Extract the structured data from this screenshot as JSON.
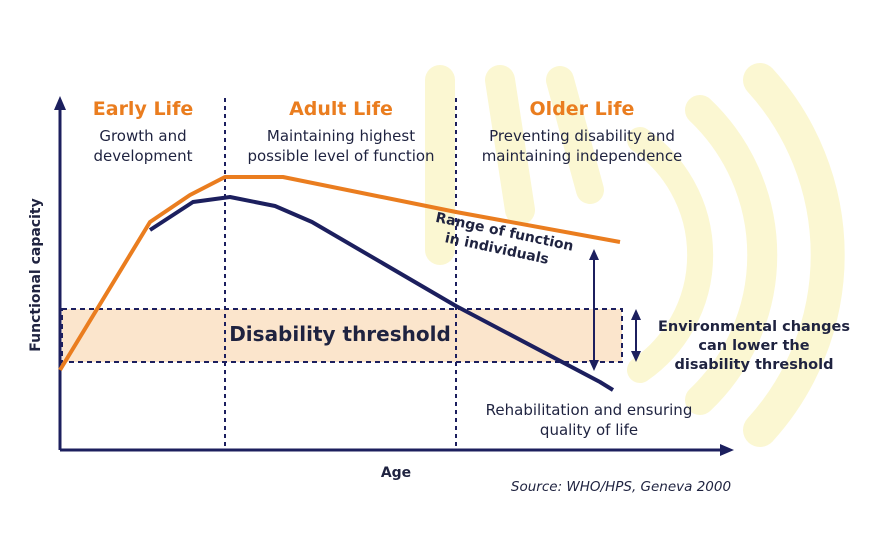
{
  "phases": [
    {
      "title": "Early Life",
      "desc_lines": [
        "Growth and",
        "development"
      ]
    },
    {
      "title": "Adult Life",
      "desc_lines": [
        "Maintaining highest",
        "possible level of function"
      ]
    },
    {
      "title": "Older Life",
      "desc_lines": [
        "Preventing disability and",
        "maintaining independence"
      ]
    }
  ],
  "axes": {
    "y_label": "Functional capacity",
    "x_label": "Age"
  },
  "range_label_lines": [
    "Range of function",
    "in individuals"
  ],
  "threshold_label": "Disability threshold",
  "environment_label_lines": [
    "Environmental changes",
    "can lower the",
    "disability threshold"
  ],
  "rehab_label_lines": [
    "Rehabilitation and ensuring",
    "quality of life"
  ],
  "source": "Source: WHO/HPS, Geneva 2000",
  "colors": {
    "upper_curve": "#ea7d1f",
    "lower_curve": "#1c1f5e",
    "axis": "#1c1f5e",
    "threshold_fill": "#fbe5cc",
    "phase_title": "#ea7d1f",
    "watermark": "#fbf7d2"
  }
}
